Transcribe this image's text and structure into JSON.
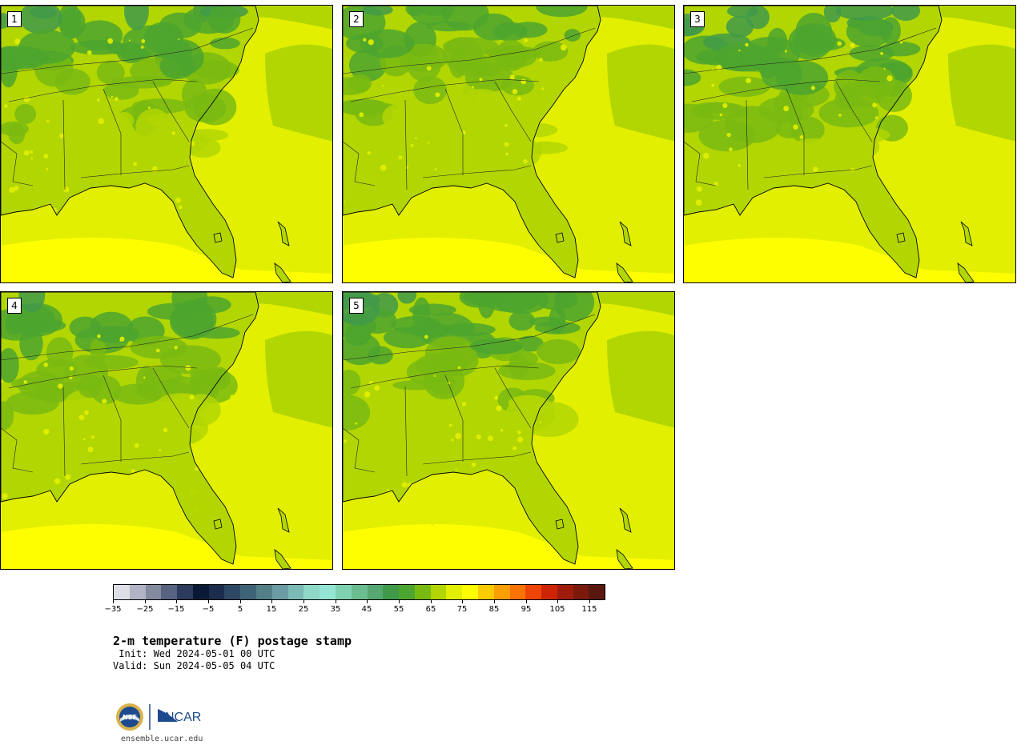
{
  "panels": [
    {
      "label": "1",
      "seed": 11,
      "warmth": 0.0
    },
    {
      "label": "2",
      "seed": 23,
      "warmth": 0.35
    },
    {
      "label": "3",
      "seed": 37,
      "warmth": -0.2
    },
    {
      "label": "4",
      "seed": 41,
      "warmth": 0.15
    },
    {
      "label": "5",
      "seed": 59,
      "warmth": 0.1
    }
  ],
  "colorbar": {
    "colors": [
      "#dcdfe6",
      "#b0b4c6",
      "#848aa0",
      "#586281",
      "#2c3a5b",
      "#0a1a36",
      "#1a2d4c",
      "#2d4862",
      "#3f6376",
      "#537f88",
      "#6b9ca3",
      "#7bbab5",
      "#8fd8c7",
      "#95e5d4",
      "#7fd1b0",
      "#6bbc8f",
      "#56a771",
      "#419a4a",
      "#4ca52e",
      "#79ba12",
      "#b2d602",
      "#e2ef00",
      "#fefe00",
      "#fccc00",
      "#fb9f02",
      "#f87204",
      "#ee4507",
      "#cd2405",
      "#a01c0a",
      "#7b1a0c",
      "#5a1710"
    ],
    "ticks": [
      "−35",
      "−25",
      "−15",
      "−5",
      "5",
      "15",
      "25",
      "35",
      "45",
      "55",
      "65",
      "75",
      "85",
      "95",
      "105",
      "115"
    ]
  },
  "title": "2-m temperature (F) postage stamp",
  "init_line": " Init: Wed 2024-05-01 00 UTC",
  "valid_line": "Valid: Sun 2024-05-05 04 UTC",
  "logos": {
    "nsf": "NSF",
    "ncar": "NCAR"
  },
  "site": "ensemble.ucar.edu"
}
